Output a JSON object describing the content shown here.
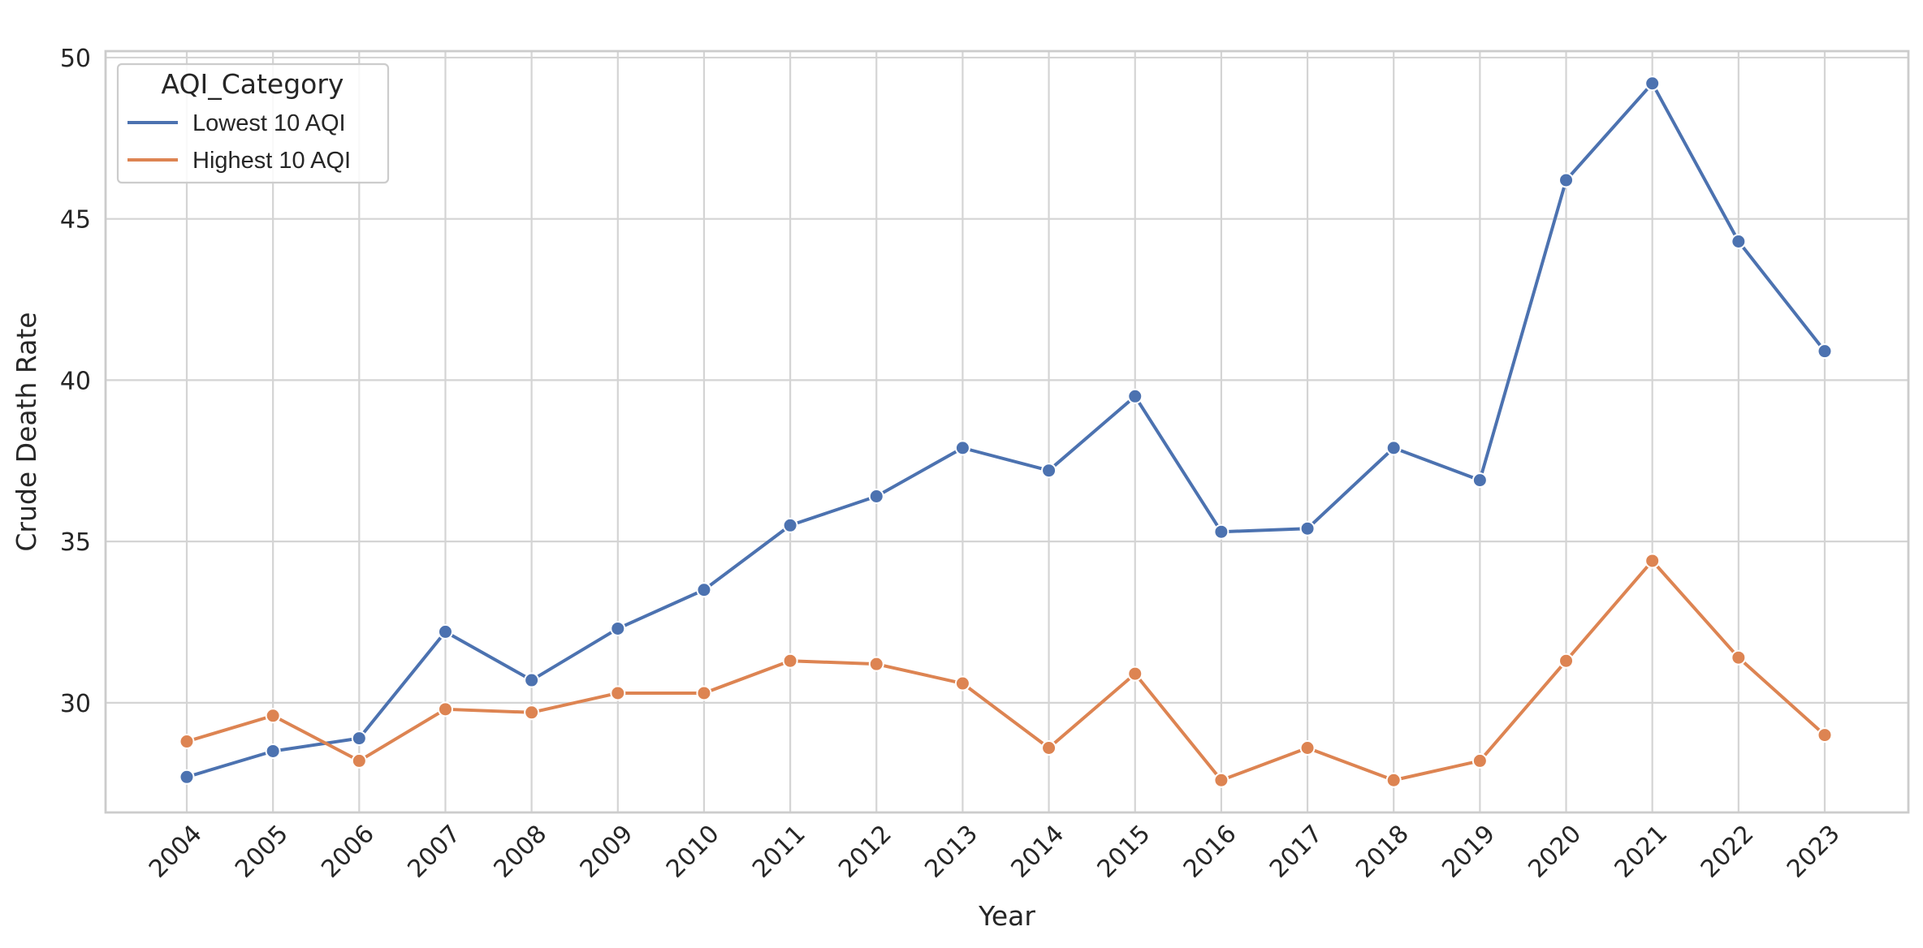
{
  "chart_data": {
    "type": "line",
    "title": "",
    "xlabel": "Year",
    "ylabel": "Crude Death Rate",
    "x": [
      "2004",
      "2005",
      "2006",
      "2007",
      "2008",
      "2009",
      "2010",
      "2011",
      "2012",
      "2013",
      "2014",
      "2015",
      "2016",
      "2017",
      "2018",
      "2019",
      "2020",
      "2021",
      "2022",
      "2023"
    ],
    "ylim": [
      26.6,
      50.2
    ],
    "yticks": [
      30,
      35,
      40,
      45,
      50
    ],
    "grid": true,
    "legend": {
      "title": "AQI_Category",
      "placement": "top-left"
    },
    "series": [
      {
        "name": "Lowest 10 AQI",
        "color": "#4c72b0",
        "values": [
          27.7,
          28.5,
          28.9,
          32.2,
          30.7,
          32.3,
          33.5,
          35.5,
          36.4,
          37.9,
          37.2,
          39.5,
          35.3,
          35.4,
          37.9,
          36.9,
          46.2,
          49.2,
          44.3,
          40.9
        ]
      },
      {
        "name": "Highest 10 AQI",
        "color": "#dd8452",
        "values": [
          28.8,
          29.6,
          28.2,
          29.8,
          29.7,
          30.3,
          30.3,
          31.3,
          31.2,
          30.6,
          28.6,
          30.9,
          27.6,
          28.6,
          27.6,
          28.2,
          31.3,
          34.4,
          31.4,
          29.0
        ]
      }
    ]
  }
}
